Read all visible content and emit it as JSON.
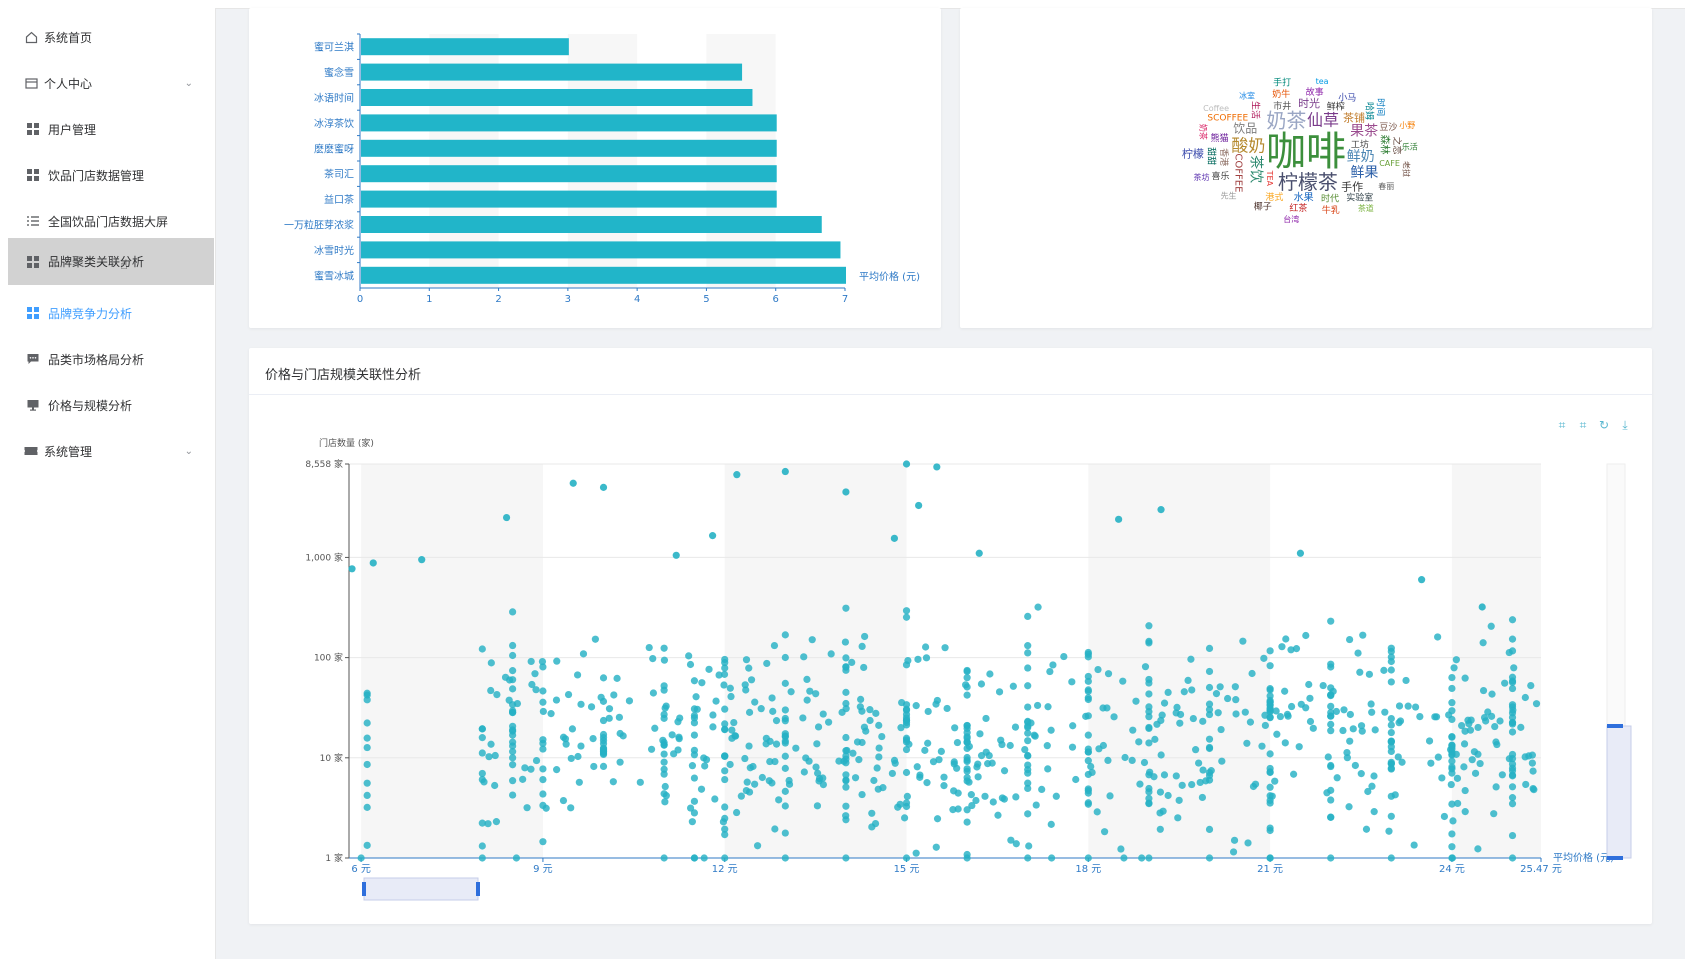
{
  "sidebar": {
    "items": [
      {
        "label": "系统首页",
        "icon": "home-icon"
      },
      {
        "label": "个人中心",
        "icon": "user-card-icon",
        "arrow": "⌄"
      },
      {
        "label": "用户管理",
        "icon": "grid-icon"
      },
      {
        "label": "饮品门店数据管理",
        "icon": "grid-icon"
      },
      {
        "label": "全国饮品门店数据大屏",
        "icon": "list-icon"
      },
      {
        "label": "品牌聚类关联分析",
        "icon": "grid-icon"
      },
      {
        "label": "品牌竞争力分析",
        "icon": "grid-icon"
      },
      {
        "label": "品类市场格局分析",
        "icon": "chat-icon"
      },
      {
        "label": "价格与规模分析",
        "icon": "monitor-icon"
      },
      {
        "label": "系统管理",
        "icon": "ticket-icon",
        "arrow": "⌄"
      }
    ]
  },
  "scatter_card": {
    "title": "价格与门店规模关联性分析"
  },
  "colors": {
    "accent": "#409eff",
    "bar": "#21b5c9",
    "scatter": "#26b1c4"
  },
  "chart_data": [
    {
      "type": "bar",
      "orientation": "horizontal",
      "categories": [
        "蜜可兰淇",
        "蜜念雪",
        "冰语时间",
        "冰淳茶饮",
        "麽麽蜜呀",
        "茶司汇",
        "益口茶",
        "一万粒胚芽浓浆",
        "冰雪时光",
        "蜜雪冰城"
      ],
      "values": [
        3.0,
        5.5,
        5.65,
        6.0,
        6.0,
        6.0,
        6.0,
        6.65,
        6.92,
        7.0
      ],
      "xlabel": "平均价格 (元)",
      "xlim": [
        0,
        7
      ],
      "xticks": [
        "0",
        "1",
        "2",
        "3",
        "4",
        "5",
        "6",
        "7"
      ]
    },
    {
      "type": "scatter",
      "ylabel": "门店数量 (家)",
      "xlabel": "平均价格 (元)",
      "xlim": [
        5.8,
        25.47
      ],
      "yscale": "log",
      "ylim": [
        1,
        8558
      ],
      "xticks": [
        "6 元",
        "9 元",
        "12 元",
        "15 元",
        "18 元",
        "21 元",
        "24 元",
        "25.47 元"
      ],
      "yticks": [
        "1 家",
        "10 家",
        "100 家",
        "1,000 家",
        "8,558 家"
      ],
      "highlight_points": [
        {
          "x": 5.85,
          "y": 770
        },
        {
          "x": 6.2,
          "y": 880
        },
        {
          "x": 7.0,
          "y": 950
        },
        {
          "x": 8.4,
          "y": 2500
        },
        {
          "x": 9.5,
          "y": 5500
        },
        {
          "x": 10.0,
          "y": 5000
        },
        {
          "x": 11.2,
          "y": 1050
        },
        {
          "x": 11.8,
          "y": 1650
        },
        {
          "x": 12.2,
          "y": 6700
        },
        {
          "x": 13.0,
          "y": 7200
        },
        {
          "x": 14.0,
          "y": 4500
        },
        {
          "x": 14.8,
          "y": 1550
        },
        {
          "x": 15.0,
          "y": 8558
        },
        {
          "x": 15.5,
          "y": 8000
        },
        {
          "x": 15.2,
          "y": 3300
        },
        {
          "x": 16.2,
          "y": 1100
        },
        {
          "x": 18.5,
          "y": 2400
        },
        {
          "x": 19.2,
          "y": 3000
        },
        {
          "x": 21.5,
          "y": 1100
        },
        {
          "x": 23.5,
          "y": 600
        },
        {
          "x": 24.5,
          "y": 320
        }
      ],
      "dataZoom": "x-slider and y-slider"
    }
  ],
  "wordcloud": {
    "words": [
      {
        "t": "咖啡",
        "c": "#3c8f3c",
        "s": 40
      },
      {
        "t": "柠檬茶",
        "c": "#4a4f6e",
        "s": 20
      },
      {
        "t": "奶茶",
        "c": "#9aa6c4",
        "s": 20
      },
      {
        "t": "酸奶",
        "c": "#b58a2f",
        "s": 17
      },
      {
        "t": "仙草",
        "c": "#7a3b8b",
        "s": 16
      },
      {
        "t": "鲜奶",
        "c": "#4b86b4",
        "s": 14
      },
      {
        "t": "茶饮",
        "c": "#2d8a6f",
        "s": 14
      },
      {
        "t": "果茶",
        "c": "#9b4c8f",
        "s": 14
      },
      {
        "t": "鲜果",
        "c": "#2b5fa8",
        "s": 14
      },
      {
        "t": "饮品",
        "c": "#7d7d7d",
        "s": 12
      },
      {
        "t": "COFFEE",
        "c": "#a04040",
        "s": 10
      },
      {
        "t": "茶铺",
        "c": "#c27f30",
        "s": 11
      },
      {
        "t": "手作",
        "c": "#333333",
        "s": 11
      },
      {
        "t": "时光",
        "c": "#7b3f8c",
        "s": 11
      },
      {
        "t": "森林",
        "c": "#2e7d32",
        "s": 10
      },
      {
        "t": "水果",
        "c": "#1565c0",
        "s": 10
      },
      {
        "t": "工坊",
        "c": "#444444",
        "s": 9
      },
      {
        "t": "市井",
        "c": "#555555",
        "s": 9
      },
      {
        "t": "香港",
        "c": "#8d6e63",
        "s": 9
      },
      {
        "t": "鲜榨",
        "c": "#333333",
        "s": 9
      },
      {
        "t": "时代",
        "c": "#558b2f",
        "s": 9
      },
      {
        "t": "港式",
        "c": "#f9a825",
        "s": 9
      },
      {
        "t": "生活",
        "c": "#ad1457",
        "s": 9
      },
      {
        "t": "CAFE",
        "c": "#689f38",
        "s": 8
      },
      {
        "t": "实验室",
        "c": "#37474f",
        "s": 9
      },
      {
        "t": "熊猫",
        "c": "#6a1b9a",
        "s": 9
      },
      {
        "t": "哈姆",
        "c": "#00838f",
        "s": 9
      },
      {
        "t": "豆沙",
        "c": "#795548",
        "s": 9
      },
      {
        "t": "红茶",
        "c": "#c62828",
        "s": 9
      },
      {
        "t": "SCOFFEE",
        "c": "#ef6c00",
        "s": 9
      },
      {
        "t": "之恋",
        "c": "#5d4037",
        "s": 9
      },
      {
        "t": "喜乐",
        "c": "#424242",
        "s": 9
      },
      {
        "t": "奶牛",
        "c": "#e65100",
        "s": 9
      },
      {
        "t": "故事",
        "c": "#8e24aa",
        "s": 9
      },
      {
        "t": "甜甜",
        "c": "#00695c",
        "s": 9
      },
      {
        "t": "小马",
        "c": "#3949ab",
        "s": 9
      },
      {
        "t": "春丽",
        "c": "#616161",
        "s": 8
      },
      {
        "t": "牛乳",
        "c": "#d84315",
        "s": 9
      },
      {
        "t": "时间",
        "c": "#0277bd",
        "s": 9
      },
      {
        "t": "椰子",
        "c": "#4e342e",
        "s": 9
      },
      {
        "t": "乐活",
        "c": "#2e7d32",
        "s": 8
      },
      {
        "t": "先生",
        "c": "#9e9e9e",
        "s": 8
      },
      {
        "t": "老挝",
        "c": "#6d4c41",
        "s": 8
      },
      {
        "t": "冰室",
        "c": "#1e88e5",
        "s": 8
      },
      {
        "t": "小野",
        "c": "#f57c00",
        "s": 8
      },
      {
        "t": "茶道",
        "c": "#7cb342",
        "s": 8
      },
      {
        "t": "TEA",
        "c": "#e53935",
        "s": 8
      },
      {
        "t": "台湾",
        "c": "#8e24aa",
        "s": 8
      },
      {
        "t": "柠檬",
        "c": "#3949ab",
        "s": 11
      },
      {
        "t": "Coffee",
        "c": "#bdbdbd",
        "s": 8
      },
      {
        "t": "奶茶",
        "c": "#d81b60",
        "s": 8
      },
      {
        "t": "茶坊",
        "c": "#5e35b1",
        "s": 8
      },
      {
        "t": "手打",
        "c": "#00897b",
        "s": 9
      },
      {
        "t": "tea",
        "c": "#039be5",
        "s": 8
      }
    ]
  }
}
